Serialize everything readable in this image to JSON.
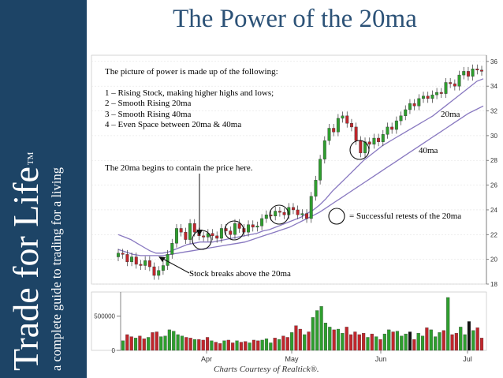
{
  "brand": {
    "title": "Trade for Life",
    "trademark": "TM",
    "tagline": "a complete guide to trading for a living"
  },
  "slide_title": "The Power of the 20ma",
  "notes": {
    "intro": "The picture of power is made up of the following:",
    "items": [
      "1 – Rising Stock, making higher highs and lows;",
      "2 – Smooth Rising 20ma",
      "3 – Smooth Rising 40ma",
      "4 – Even Space between 20ma & 40ma"
    ],
    "contain": "The 20ma begins to contain the price here.",
    "breakout": "Stock breaks above the 20ma",
    "retests": "= Successful retests of the 20ma",
    "ma20": "20ma",
    "ma40": "40ma"
  },
  "credit": "Charts Courtesy of Realtick®.",
  "colors": {
    "sidebar": "#1d4466",
    "title": "#2c5277",
    "up": "#2e9e2e",
    "down": "#c0262c",
    "ma": "#8878c0"
  },
  "chart_data": [
    {
      "type": "candlestick",
      "y_ticks": [
        "36",
        "34",
        "32",
        "30",
        "28",
        "26",
        "24",
        "22",
        "20",
        "18"
      ],
      "ylim": [
        18,
        36.5
      ],
      "x_ticks": [
        "Apr",
        "May",
        "Jun",
        "Jul"
      ],
      "close": [
        20.5,
        20.4,
        19.8,
        20.2,
        19.6,
        19.5,
        19.9,
        19.4,
        18.7,
        19.1,
        19.5,
        20.4,
        21.3,
        22.5,
        22.2,
        21.6,
        22.9,
        22.2,
        21.9,
        21.8,
        22.1,
        21.9,
        21.7,
        22.5,
        22.3,
        22.0,
        22.9,
        22.5,
        22.2,
        22.8,
        22.6,
        22.7,
        23.3,
        23.6,
        23.5,
        23.9,
        23.8,
        23.6,
        24.2,
        24.0,
        23.6,
        23.7,
        23.3,
        25.1,
        26.4,
        28.1,
        29.6,
        30.6,
        30.3,
        31.4,
        31.6,
        31.0,
        30.7,
        29.6,
        28.6,
        29.5,
        29.3,
        29.8,
        29.5,
        30.1,
        30.7,
        30.5,
        31.2,
        31.6,
        32.1,
        32.6,
        32.4,
        33.0,
        33.2,
        33.0,
        33.3,
        33.5,
        33.4,
        34.3,
        34.2,
        34.0,
        34.9,
        35.2,
        34.8,
        35.4,
        35.3,
        35.2
      ],
      "ma20": [
        22.0,
        21.8,
        21.6,
        21.3,
        21.0,
        20.7,
        20.5,
        20.5,
        20.6,
        20.8,
        21.0,
        21.2,
        21.3,
        21.4,
        21.4,
        21.4,
        21.5,
        21.6,
        21.7,
        21.8,
        21.9,
        22.0,
        22.1,
        22.3,
        22.4,
        22.6,
        22.8,
        23.0,
        23.2,
        23.4,
        23.7,
        24.0,
        24.4,
        24.9,
        25.5,
        26.0,
        26.5,
        27.0,
        27.5,
        28.0,
        28.4,
        28.8,
        29.2,
        29.5,
        29.8,
        30.1,
        30.4,
        30.7,
        31.0,
        31.3,
        31.6,
        32.0,
        32.4,
        32.8,
        33.2,
        33.6,
        34.0,
        34.4,
        34.6
      ],
      "ma40": [
        20.8,
        20.6,
        20.4,
        20.3,
        20.3,
        20.3,
        20.3,
        20.4,
        20.5,
        20.6,
        20.7,
        20.8,
        20.9,
        21.0,
        21.1,
        21.2,
        21.3,
        21.4,
        21.6,
        21.8,
        22.0,
        22.2,
        22.4,
        22.6,
        22.9,
        23.2,
        23.5,
        23.8,
        24.2,
        24.6,
        25.0,
        25.4,
        25.8,
        26.2,
        26.6,
        27.0,
        27.4,
        27.8,
        28.2,
        28.6,
        29.0,
        29.4,
        29.8,
        30.2,
        30.6,
        31.0,
        31.4,
        31.8,
        32.1,
        32.4
      ]
    },
    {
      "type": "bar",
      "y_ticks": [
        "500000",
        "0"
      ],
      "ylim": [
        0,
        850000
      ],
      "values": [
        140000,
        230000,
        200000,
        180000,
        210000,
        170000,
        190000,
        260000,
        270000,
        200000,
        210000,
        300000,
        280000,
        230000,
        210000,
        190000,
        180000,
        160000,
        160000,
        150000,
        190000,
        140000,
        120000,
        100000,
        140000,
        150000,
        110000,
        140000,
        120000,
        130000,
        110000,
        150000,
        140000,
        150000,
        170000,
        110000,
        180000,
        160000,
        210000,
        190000,
        260000,
        360000,
        310000,
        230000,
        270000,
        480000,
        580000,
        640000,
        400000,
        340000,
        300000,
        310000,
        250000,
        340000,
        230000,
        270000,
        230000,
        250000,
        190000,
        240000,
        200000,
        160000,
        240000,
        300000,
        270000,
        280000,
        210000,
        240000,
        270000,
        160000,
        250000,
        210000,
        330000,
        300000,
        200000,
        260000,
        290000,
        770000,
        230000,
        250000,
        340000,
        230000,
        420000,
        290000,
        330000,
        180000
      ]
    }
  ]
}
